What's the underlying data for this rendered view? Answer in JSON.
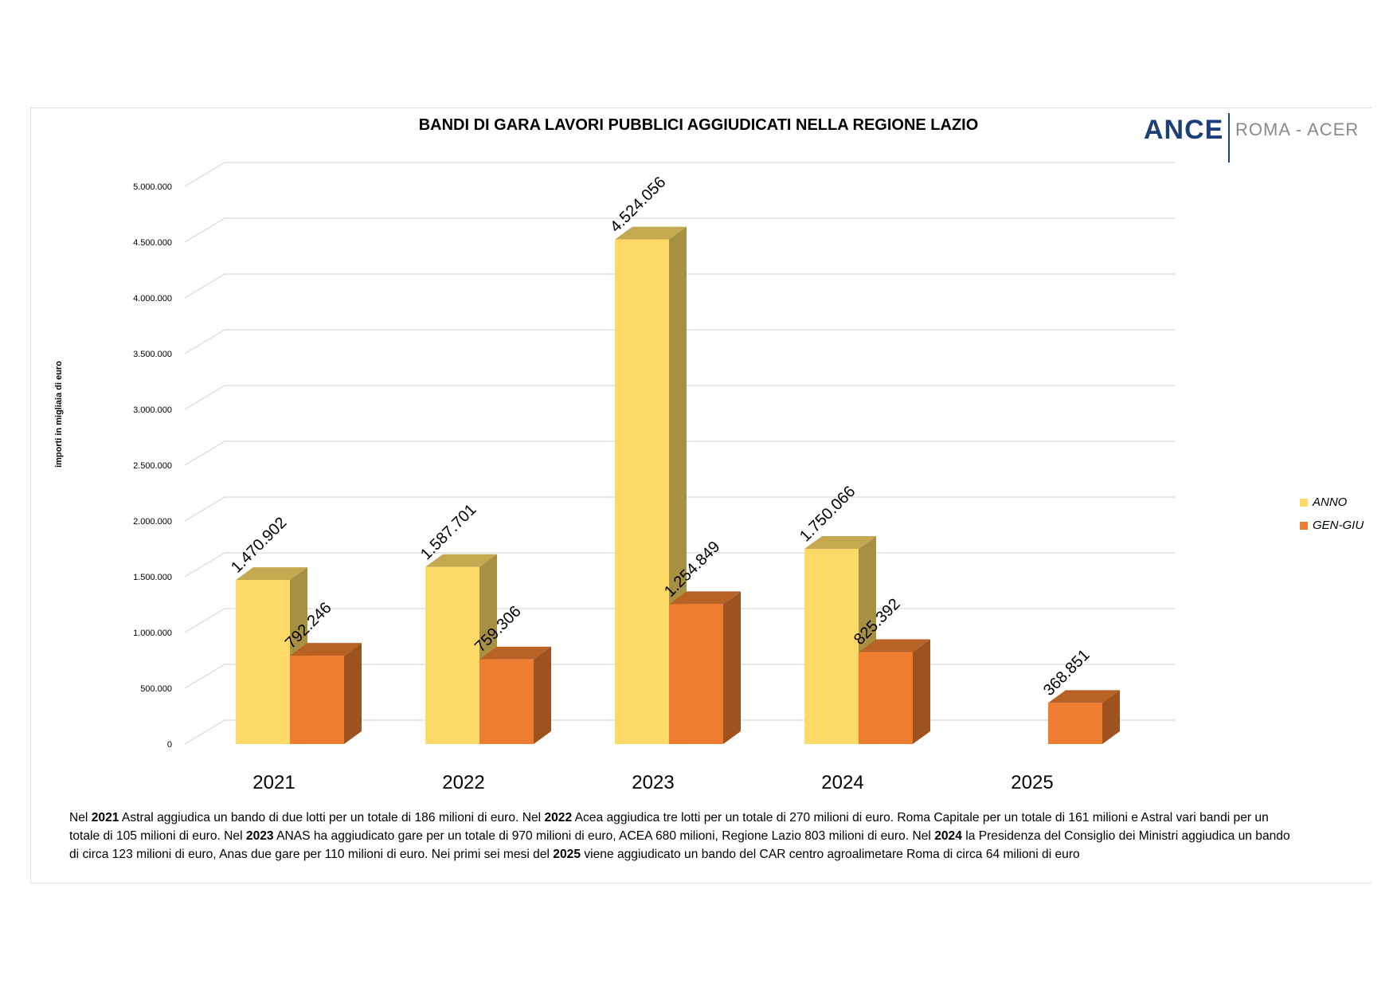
{
  "chart_data": {
    "type": "bar",
    "title": "BANDI DI GARA LAVORI PUBBLICI AGGIUDICATI NELLA REGIONE LAZIO",
    "ylabel": "importi in migliaia di euro",
    "xlabel": "",
    "categories": [
      "2021",
      "2022",
      "2023",
      "2024",
      "2025"
    ],
    "series": [
      {
        "name": "ANNO",
        "color": "#FDD967",
        "values": [
          1470902,
          1587701,
          4524056,
          1750066,
          null
        ],
        "labels": [
          "1.470.902",
          "1.587.701",
          "4.524.056",
          "1.750.066",
          ""
        ]
      },
      {
        "name": "GEN-GIU",
        "color": "#ED7D31",
        "values": [
          792246,
          759306,
          1254849,
          825392,
          368851
        ],
        "labels": [
          "792.246",
          "759.306",
          "1.254.849",
          "825.392",
          "368.851"
        ]
      }
    ],
    "ylim": [
      0,
      5000000
    ],
    "yticks": [
      "0",
      "500.000",
      "1.000.000",
      "1.500.000",
      "2.000.000",
      "2.500.000",
      "3.000.000",
      "3.500.000",
      "4.000.000",
      "4.500.000",
      "5.000.000"
    ],
    "grid": true,
    "legend_position": "right"
  },
  "logo": {
    "brand": "ANCE",
    "sub": "ROMA - ACER"
  },
  "note": [
    [
      {
        "t": "Nel "
      },
      {
        "t": "2021",
        "b": true
      },
      {
        "t": " Astral aggiudica un bando di due lotti per un totale di 186 milioni di euro. Nel "
      },
      {
        "t": "2022",
        "b": true
      },
      {
        "t": " Acea aggiudica tre lotti per un totale di 270 milioni di euro. Roma Capitale per un totale di 161 milioni e Astral vari bandi per un"
      }
    ],
    [
      {
        "t": "totale di 105 milioni di euro. Nel "
      },
      {
        "t": "2023",
        "b": true
      },
      {
        "t": " ANAS ha aggiudicato gare per un totale di 970 milioni di euro, ACEA 680 milioni, Regione Lazio 803 milioni di euro. Nel "
      },
      {
        "t": "2024",
        "b": true
      },
      {
        "t": " la Presidenza del Consiglio dei Ministri aggiudica un bando"
      }
    ],
    [
      {
        "t": "di circa 123 milioni di euro, Anas due gare per 110 milioni di euro. Nei primi sei mesi del "
      },
      {
        "t": "2025",
        "b": true
      },
      {
        "t": " viene aggiudicato un bando del CAR centro agroalimetare Roma di  circa 64 milioni di euro"
      }
    ]
  ]
}
